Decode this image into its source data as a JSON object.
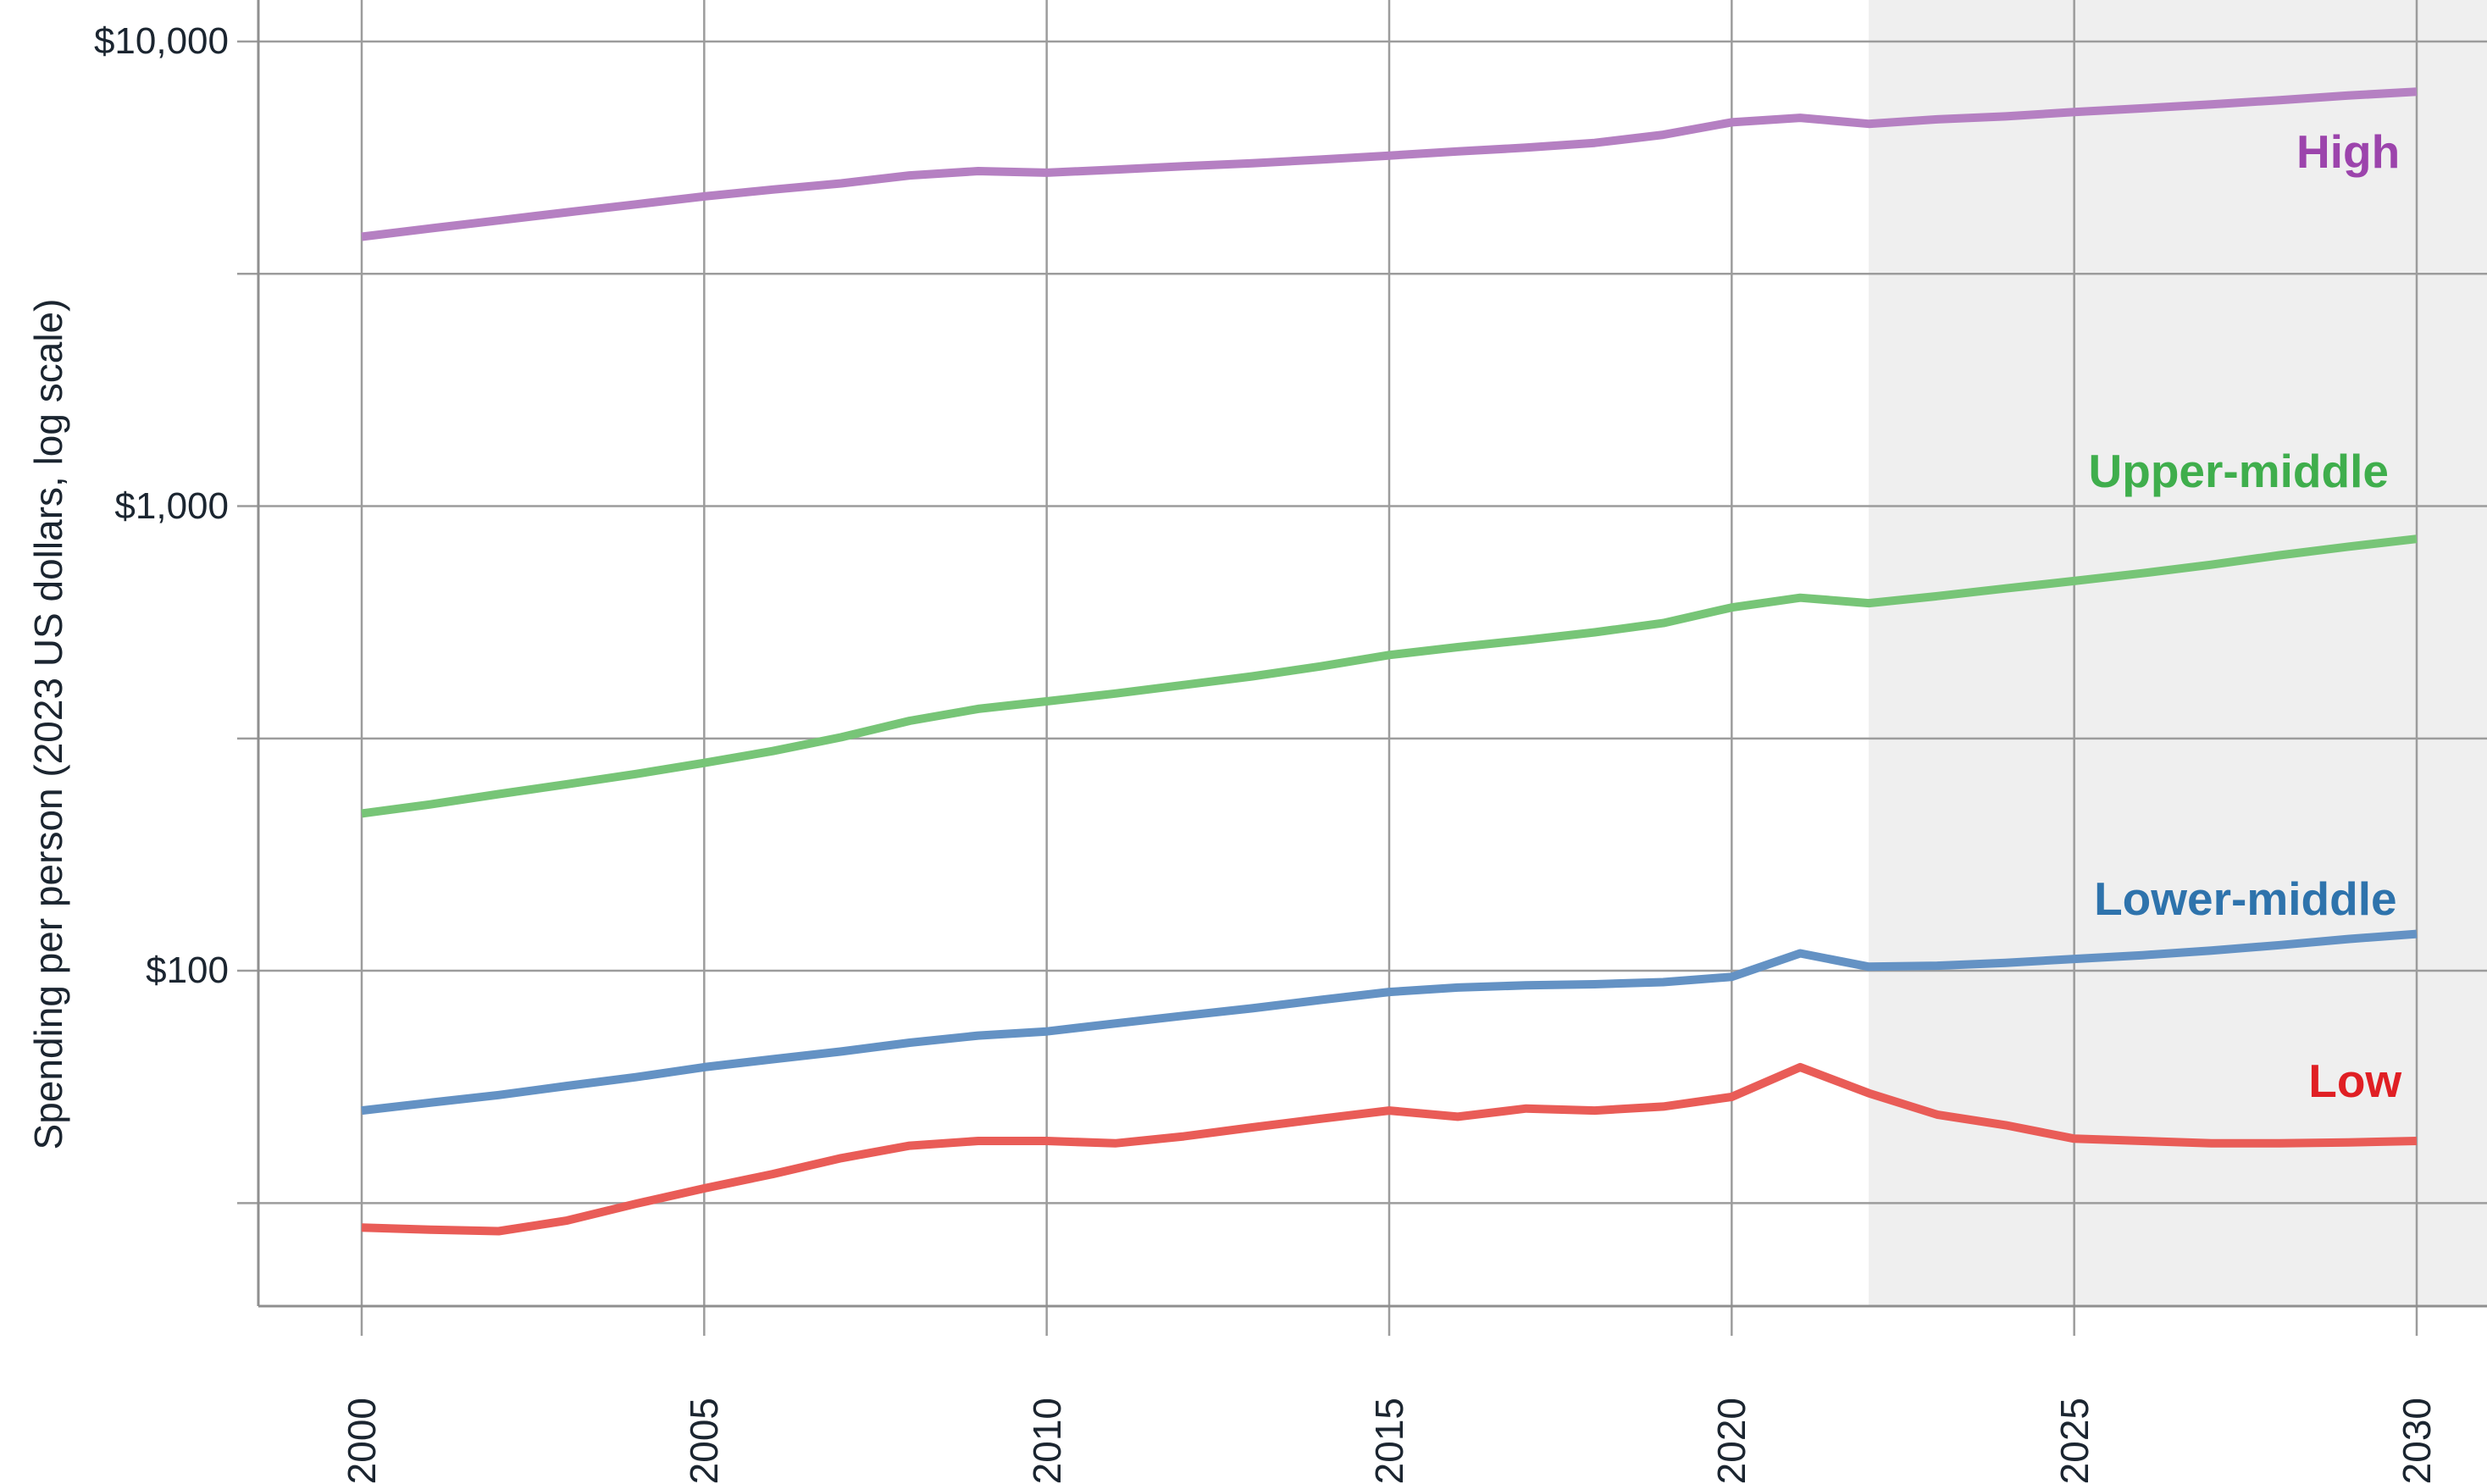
{
  "chart_data": {
    "type": "line",
    "title": "",
    "xlabel": "",
    "ylabel": "Spending per person (2023 US dollars, log scale)",
    "y_scale": "log",
    "ylim": [
      19,
      12000
    ],
    "grid": true,
    "legend_position": "inline-right",
    "text_color": "#1b2530",
    "grid_color": "#9c9c9c",
    "axis_color": "#8f8f8f",
    "y_ticks": [
      {
        "value": 10000,
        "label": "$10,000"
      },
      {
        "value": 1000,
        "label": "$1,000"
      },
      {
        "value": 100,
        "label": "$100"
      }
    ],
    "y_minor_gridline_values": [
      3162,
      316,
      31.6
    ],
    "x_ticks": [
      "2000",
      "2005",
      "2010",
      "2015",
      "2020",
      "2025",
      "2030"
    ],
    "x_tick_years": [
      2000,
      2005,
      2010,
      2015,
      2020,
      2025,
      2030
    ],
    "forecast_band": {
      "start_year": 2022,
      "end_year": 2031,
      "color": "#efefef"
    },
    "years": [
      2000,
      2001,
      2002,
      2003,
      2004,
      2005,
      2006,
      2007,
      2008,
      2009,
      2010,
      2011,
      2012,
      2013,
      2014,
      2015,
      2016,
      2017,
      2018,
      2019,
      2020,
      2021,
      2022,
      2023,
      2024,
      2025,
      2026,
      2027,
      2028,
      2029,
      2030
    ],
    "series": [
      {
        "name": "High",
        "color": "#b580c2",
        "label_color": "#9c44ac",
        "label_anchor": {
          "year": 2029.0,
          "value": 5800
        },
        "values": [
          3800,
          3960,
          4120,
          4290,
          4460,
          4640,
          4800,
          4950,
          5150,
          5260,
          5220,
          5300,
          5390,
          5470,
          5570,
          5680,
          5800,
          5910,
          6050,
          6300,
          6700,
          6850,
          6650,
          6800,
          6900,
          7050,
          7180,
          7320,
          7480,
          7650,
          7800
        ]
      },
      {
        "name": "Upper-middle",
        "color": "#77c577",
        "label_color": "#3fae4c",
        "label_anchor": {
          "year": 2027.4,
          "value": 1190
        },
        "values": [
          218,
          228,
          240,
          252,
          265,
          280,
          297,
          318,
          345,
          366,
          380,
          395,
          412,
          430,
          452,
          478,
          497,
          515,
          535,
          560,
          605,
          635,
          618,
          640,
          665,
          690,
          717,
          748,
          784,
          818,
          850
        ]
      },
      {
        "name": "Lower-middle",
        "color": "#6492c4",
        "label_color": "#2e73ac",
        "label_anchor": {
          "year": 2027.5,
          "value": 143
        },
        "values": [
          50,
          52,
          54,
          56.5,
          59,
          62,
          64.5,
          67,
          70,
          72.5,
          74,
          77,
          80,
          83,
          86.5,
          90,
          92,
          93,
          93.5,
          94.5,
          97,
          109,
          102,
          102.5,
          104,
          106,
          108,
          110.5,
          113.5,
          117,
          120
        ]
      },
      {
        "name": "Low",
        "color": "#e95c57",
        "label_color": "#e01f24",
        "label_anchor": {
          "year": 2029.1,
          "value": 58
        },
        "values": [
          28,
          27.7,
          27.5,
          29,
          31.5,
          34,
          36.5,
          39.5,
          42,
          43,
          43,
          42.5,
          44,
          46,
          48,
          50,
          48.5,
          50.5,
          50,
          51,
          53.5,
          62,
          54.5,
          49,
          46.5,
          43.5,
          43,
          42.5,
          42.5,
          42.7,
          43
        ]
      }
    ]
  }
}
